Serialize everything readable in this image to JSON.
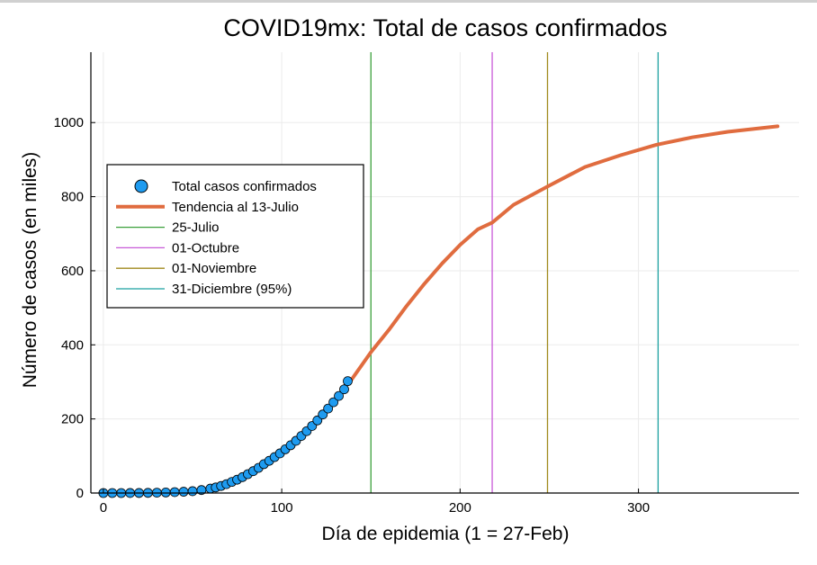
{
  "chart_data": {
    "type": "line",
    "title": "COVID19mx: Total de casos confirmados",
    "xlabel": "Día de epidemia (1 = 27-Feb)",
    "ylabel": "Número de casos (en miles)",
    "xlim": [
      -7,
      390
    ],
    "ylim": [
      0,
      1190
    ],
    "xticks": [
      0,
      100,
      200,
      300
    ],
    "yticks": [
      0,
      200,
      400,
      600,
      800,
      1000
    ],
    "grid": true,
    "legend_position": "upper-left",
    "colors": {
      "scatter": "#1e9bf0",
      "trend": "#e06c3f",
      "julio": "#3aa03a",
      "octubre": "#c85ad8",
      "noviembre": "#a08a1e",
      "diciembre": "#1aa0a0"
    },
    "legend": [
      {
        "label": "Total casos confirmados",
        "kind": "marker",
        "color_key": "scatter"
      },
      {
        "label": "Tendencia al 13-Julio",
        "kind": "thick",
        "color_key": "trend"
      },
      {
        "label": "25-Julio",
        "kind": "thin",
        "color_key": "julio"
      },
      {
        "label": "01-Octubre",
        "kind": "thin",
        "color_key": "octubre"
      },
      {
        "label": "01-Noviembre",
        "kind": "thin",
        "color_key": "noviembre"
      },
      {
        "label": "31-Diciembre (95%)",
        "kind": "thin",
        "color_key": "diciembre"
      }
    ],
    "series": [
      {
        "name": "Total casos confirmados",
        "type": "scatter",
        "x": [
          0,
          5,
          10,
          15,
          20,
          25,
          30,
          35,
          40,
          45,
          50,
          55,
          60,
          63,
          66,
          69,
          72,
          75,
          78,
          81,
          84,
          87,
          90,
          93,
          96,
          99,
          102,
          105,
          108,
          111,
          114,
          117,
          120,
          123,
          126,
          129,
          132,
          135,
          137
        ],
        "y": [
          0,
          0,
          0,
          0.1,
          0.2,
          0.5,
          1,
          1.5,
          2.5,
          3.5,
          5,
          8,
          12,
          15,
          19,
          24,
          30,
          36,
          43,
          51,
          59,
          68,
          78,
          87,
          97,
          107,
          118,
          129,
          141,
          154,
          167,
          181,
          196,
          212,
          228,
          245,
          262,
          280,
          302
        ]
      },
      {
        "name": "Tendencia al 13-Julio",
        "type": "line",
        "x": [
          139,
          150,
          160,
          170,
          180,
          190,
          200,
          210,
          218,
          230,
          250,
          270,
          290,
          310,
          330,
          350,
          378
        ],
        "y": [
          305,
          380,
          440,
          505,
          565,
          620,
          670,
          712,
          730,
          778,
          830,
          880,
          912,
          940,
          960,
          975,
          990
        ]
      }
    ],
    "vlines": [
      {
        "name": "25-Julio",
        "x": 150,
        "color_key": "julio"
      },
      {
        "name": "01-Octubre",
        "x": 218,
        "color_key": "octubre"
      },
      {
        "name": "01-Noviembre",
        "x": 249,
        "color_key": "noviembre"
      },
      {
        "name": "31-Diciembre (95%)",
        "x": 311,
        "color_key": "diciembre"
      }
    ]
  }
}
